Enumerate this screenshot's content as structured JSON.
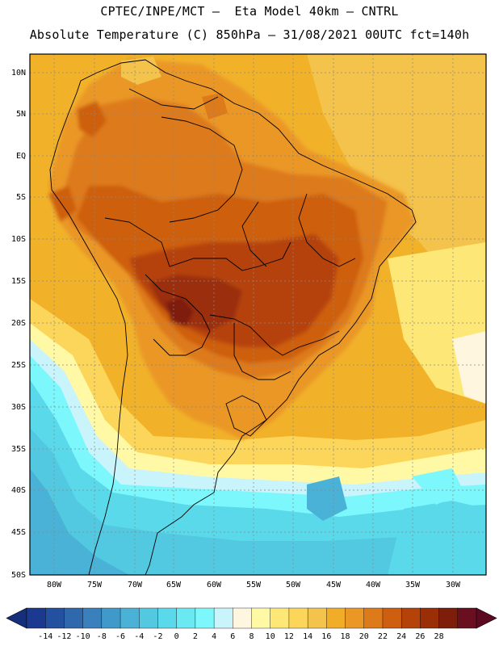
{
  "header": {
    "title_line1": "CPTEC/INPE/MCT –  Eta Model 40km – CNTRL",
    "title_line2": "Absolute Temperature (C) 850hPa – 31/08/2021 00UTC fct=140h"
  },
  "axes": {
    "lat_labels": [
      "10N",
      "5N",
      "EQ",
      "5S",
      "10S",
      "15S",
      "20S",
      "25S",
      "30S",
      "35S",
      "40S",
      "45S",
      "50S"
    ],
    "lon_labels": [
      "80W",
      "75W",
      "70W",
      "65W",
      "60W",
      "55W",
      "50W",
      "45W",
      "40W",
      "35W",
      "30W"
    ]
  },
  "colorbar": {
    "labels": [
      "-14",
      "-12",
      "-10",
      "-8",
      "-6",
      "-4",
      "-2",
      "0",
      "2",
      "4",
      "6",
      "8",
      "10",
      "12",
      "14",
      "16",
      "18",
      "20",
      "22",
      "24",
      "26",
      "28"
    ],
    "colors": [
      "#1b3a8f",
      "#23509f",
      "#2f68ad",
      "#3a80bd",
      "#3f99c9",
      "#49b2d6",
      "#53c8e1",
      "#5ad9ea",
      "#6ae9f2",
      "#7cf7fb",
      "#c9f4fb",
      "#fff6df",
      "#fff9a6",
      "#fde776",
      "#fbd65a",
      "#f4c34b",
      "#f1ad28",
      "#ea9726",
      "#dd7a1a",
      "#ce5e10",
      "#b54309",
      "#9a2f07",
      "#7e1d0a",
      "#6a0f20"
    ],
    "below_color": "#152f7a",
    "above_color": "#5b0a20"
  }
}
